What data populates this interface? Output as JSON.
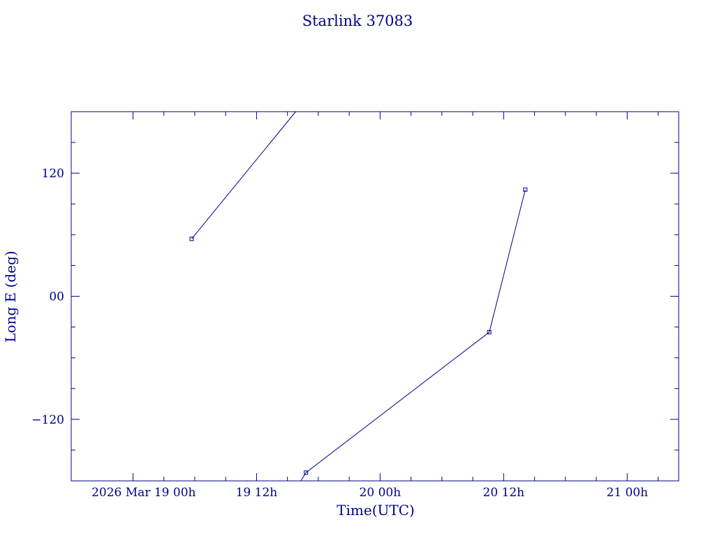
{
  "colors": {
    "ink": "#00008b",
    "background": "#ffffff"
  },
  "chart_data": {
    "type": "line",
    "title": "Starlink 37083",
    "xlabel": "Time(UTC)",
    "ylabel": "Long E (deg)",
    "x_units": "hours since 2026 Mar 19 00h UTC",
    "xlim": [
      -6,
      53
    ],
    "ylim": [
      -180,
      180
    ],
    "grid": false,
    "x_major_ticks": [
      {
        "x": 0,
        "label": "2026 Mar 19  00h"
      },
      {
        "x": 12,
        "label": "19  12h"
      },
      {
        "x": 24,
        "label": "20  00h"
      },
      {
        "x": 36,
        "label": "20  12h"
      },
      {
        "x": 48,
        "label": "21  00h"
      }
    ],
    "x_minor_ticks": [
      -6,
      3,
      6,
      9,
      15,
      18,
      21,
      27,
      30,
      33,
      39,
      42,
      45,
      51
    ],
    "y_major_ticks": [
      {
        "y": 120,
        "label": "120"
      },
      {
        "y": 0,
        "label": "00"
      },
      {
        "y": -120,
        "label": "−120"
      }
    ],
    "y_minor_ticks": [
      150,
      90,
      60,
      30,
      -30,
      -60,
      -90,
      -150
    ],
    "series": [
      {
        "segments": [
          [
            [
              5.7,
              56
            ],
            [
              15.8,
              180
            ]
          ],
          [
            [
              16.3,
              -180
            ],
            [
              16.8,
              -172
            ],
            [
              34.6,
              -35
            ],
            [
              38.1,
              104
            ]
          ]
        ],
        "markers": [
          [
            5.7,
            56
          ],
          [
            16.8,
            -172
          ],
          [
            34.6,
            -35
          ],
          [
            38.1,
            104
          ]
        ]
      }
    ]
  }
}
